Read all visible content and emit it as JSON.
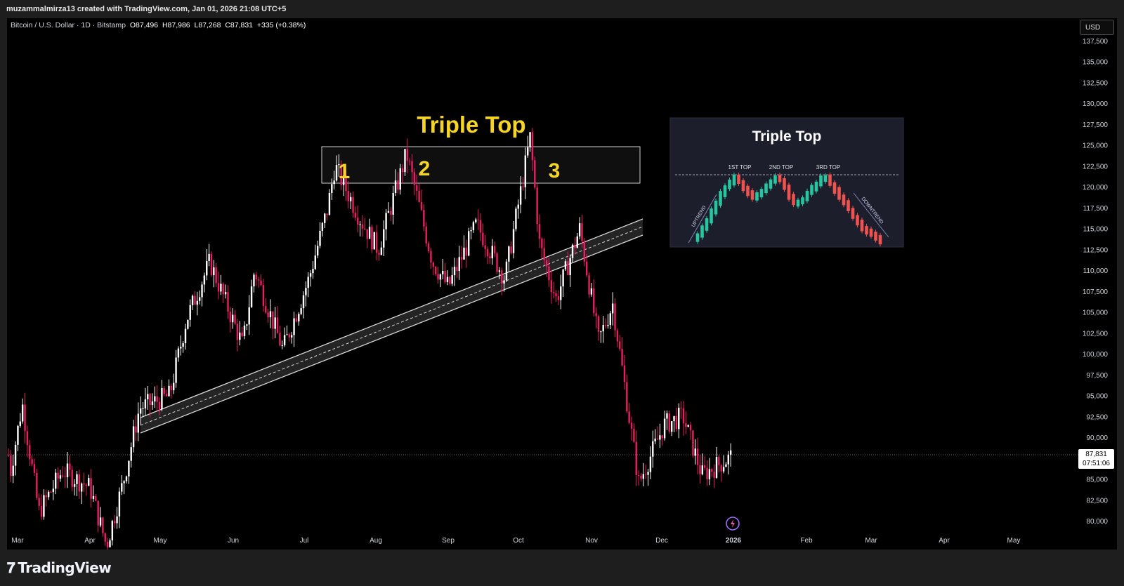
{
  "header": {
    "credit": "muzammalmirza13 created with TradingView.com, Jan 01, 2026 21:08 UTC+5"
  },
  "legend": {
    "symbol": "Bitcoin / U.S. Dollar · 1D · Bitstamp",
    "open": "O87,496",
    "high": "H87,986",
    "low": "L87,268",
    "close": "C87,831",
    "change": "+335 (+0.38%)"
  },
  "currency": "USD",
  "last_price": {
    "value": "87,831",
    "countdown": "07:51:06"
  },
  "annotations": {
    "title": "Triple Top",
    "label_1": "1",
    "label_2": "2",
    "label_3": "3"
  },
  "inset": {
    "title": "Triple Top",
    "top1": "1ST TOP",
    "top2": "2ND TOP",
    "top3": "3RD TOP",
    "uptrend": "UPTREND",
    "downtrend": "DOWNTREND"
  },
  "brand": "TradingView",
  "colors": {
    "up": "#ffffff",
    "down": "#e91e63",
    "accent_text": "#f5d327",
    "inset_up": "#26c6a0",
    "inset_down": "#ef5350"
  },
  "chart_data": {
    "type": "candlestick",
    "symbol": "Bitcoin / U.S. Dollar",
    "timeframe": "1D",
    "y_ticks": [
      "137,500",
      "135,000",
      "132,500",
      "130,000",
      "127,500",
      "125,000",
      "122,500",
      "120,000",
      "117,500",
      "115,000",
      "112,500",
      "110,000",
      "107,500",
      "105,000",
      "102,500",
      "100,000",
      "97,500",
      "95,000",
      "92,500",
      "90,000",
      "87,500",
      "85,000",
      "82,500",
      "80,000"
    ],
    "ylim": [
      79000,
      139000
    ],
    "x_ticks": [
      "Mar",
      "Apr",
      "May",
      "Jun",
      "Jul",
      "Aug",
      "Sep",
      "Oct",
      "Nov",
      "Dec",
      "2026",
      "Feb",
      "Mar",
      "Apr",
      "May"
    ],
    "approx_path": [
      [
        "Feb 27",
        85000
      ],
      [
        "Mar 3",
        94000
      ],
      [
        "Mar 10",
        81000
      ],
      [
        "Mar 20",
        86000
      ],
      [
        "Apr 1",
        84000
      ],
      [
        "Apr 8",
        77000
      ],
      [
        "Apr 15",
        84500
      ],
      [
        "Apr 22",
        93500
      ],
      [
        "May 5",
        95000
      ],
      [
        "May 12",
        104000
      ],
      [
        "May 22",
        111000
      ],
      [
        "Jun 5",
        101000
      ],
      [
        "Jun 10",
        110000
      ],
      [
        "Jun 22",
        100500
      ],
      [
        "Jul 3",
        109000
      ],
      [
        "Jul 11",
        117500
      ],
      [
        "Jul 14",
        122500
      ],
      [
        "Jul 25",
        116000
      ],
      [
        "Aug 2",
        112500
      ],
      [
        "Aug 14",
        124000
      ],
      [
        "Aug 25",
        111000
      ],
      [
        "Sep 1",
        108000
      ],
      [
        "Sep 13",
        115500
      ],
      [
        "Sep 25",
        109000
      ],
      [
        "Oct 2",
        119500
      ],
      [
        "Oct 6",
        126000
      ],
      [
        "Oct 10",
        113000
      ],
      [
        "Oct 17",
        106500
      ],
      [
        "Oct 27",
        115000
      ],
      [
        "Nov 4",
        101500
      ],
      [
        "Nov 10",
        106000
      ],
      [
        "Nov 21",
        84500
      ],
      [
        "Dec 2",
        91500
      ],
      [
        "Dec 10",
        92500
      ],
      [
        "Dec 18",
        85500
      ],
      [
        "Jan 1",
        87831
      ]
    ],
    "triple_top_zone": [
      120000,
      125000
    ],
    "trendline": "rising support channel from ~91,000 (Apr 22) to ~114,000 (Nov 10)"
  }
}
